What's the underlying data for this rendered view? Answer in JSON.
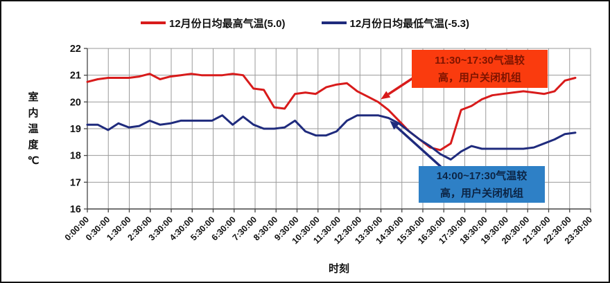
{
  "legend": {
    "items": [
      {
        "label": "12月份日均最高气温(5.0)",
        "color": "#d81b1b"
      },
      {
        "label": "12月份日均最低气温(-5.3)",
        "color": "#1f2b7d"
      }
    ]
  },
  "annotations": [
    {
      "id": "high-temp-callout",
      "lines": [
        "11:30~17:30气温较",
        "高，用户关闭机组"
      ],
      "bg_color": "#fa3b0e",
      "text_color": "#7e1400",
      "arrow_color": "#d81b1b",
      "points_to": {
        "series": 0,
        "x": "14:00"
      }
    },
    {
      "id": "low-temp-callout",
      "lines": [
        "14:00~17:30气温较",
        "高，用户关闭机组"
      ],
      "bg_color": "#2e80c6",
      "text_color": "#0c2444",
      "arrow_color": "#1f2b7d",
      "points_to": {
        "series": 1,
        "x": "14:30"
      }
    }
  ],
  "chart_data": {
    "type": "line",
    "title": "",
    "xlabel": "时刻",
    "ylabel": "室内温度℃",
    "ylim": [
      16,
      22
    ],
    "y_ticks": [
      22,
      21,
      20,
      19,
      18,
      17,
      16
    ],
    "grid": true,
    "legend_position": "top",
    "x_tick_labels": [
      "0:00:00",
      "0:30:00",
      "1:30:00",
      "2:30:00",
      "3:30:00",
      "4:30:00",
      "5:30:00",
      "6:30:00",
      "7:30:00",
      "8:30:00",
      "9:30:00",
      "10:30:00",
      "11:30:00",
      "12:30:00",
      "13:30:00",
      "14:30:00",
      "15:30:00",
      "16:30:00",
      "17:30:00",
      "18:30:00",
      "19:30:00",
      "20:30:00",
      "21:30:00",
      "22:30:00",
      "23:30:00"
    ],
    "x": [
      "0:00",
      "0:30",
      "1:00",
      "1:30",
      "2:00",
      "2:30",
      "3:00",
      "3:30",
      "4:00",
      "4:30",
      "5:00",
      "5:30",
      "6:00",
      "6:30",
      "7:00",
      "7:30",
      "8:00",
      "8:30",
      "9:00",
      "9:30",
      "10:00",
      "10:30",
      "11:00",
      "11:30",
      "12:00",
      "12:30",
      "13:00",
      "13:30",
      "14:00",
      "14:30",
      "15:00",
      "15:30",
      "16:00",
      "16:30",
      "17:00",
      "17:30",
      "18:00",
      "18:30",
      "19:00",
      "19:30",
      "20:00",
      "20:30",
      "21:00",
      "21:30",
      "22:00",
      "22:30",
      "23:00",
      "23:30"
    ],
    "series": [
      {
        "name": "12月份日均最高气温(5.0)",
        "color": "#d81b1b",
        "values": [
          20.75,
          20.85,
          20.9,
          20.9,
          20.9,
          20.95,
          21.05,
          20.85,
          20.95,
          21.0,
          21.05,
          21.0,
          21.0,
          21.0,
          21.05,
          21.0,
          20.5,
          20.45,
          19.8,
          19.75,
          20.3,
          20.35,
          20.3,
          20.55,
          20.65,
          20.7,
          20.4,
          20.2,
          20.0,
          19.7,
          19.3,
          18.9,
          18.6,
          18.3,
          18.2,
          18.45,
          19.7,
          19.85,
          20.1,
          20.25,
          20.3,
          20.35,
          20.4,
          20.35,
          20.3,
          20.4,
          20.8,
          20.9
        ]
      },
      {
        "name": "12月份日均最低气温(-5.3)",
        "color": "#1f2b7d",
        "values": [
          19.15,
          19.15,
          18.95,
          19.2,
          19.05,
          19.1,
          19.3,
          19.15,
          19.2,
          19.3,
          19.3,
          19.3,
          19.3,
          19.5,
          19.15,
          19.45,
          19.15,
          19.0,
          19.0,
          19.05,
          19.3,
          18.9,
          18.75,
          18.75,
          18.9,
          19.3,
          19.5,
          19.5,
          19.5,
          19.4,
          19.2,
          18.9,
          18.6,
          18.35,
          18.05,
          17.85,
          18.15,
          18.35,
          18.25,
          18.25,
          18.25,
          18.25,
          18.25,
          18.3,
          18.45,
          18.6,
          18.8,
          18.85
        ]
      }
    ]
  }
}
